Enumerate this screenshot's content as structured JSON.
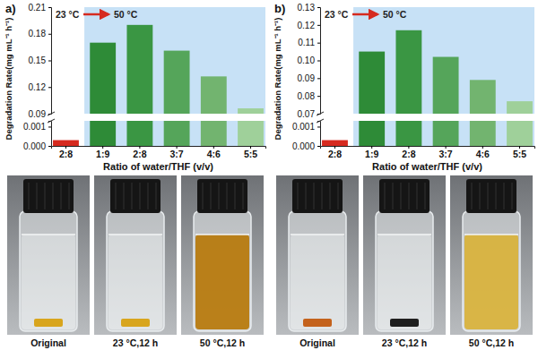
{
  "chart_data": [
    {
      "type": "bar",
      "panel_label": "a)",
      "ylabel": "Degradation Rate(mg mL⁻¹ h⁻¹)",
      "xlabel": "Ratio of water/THF (v/v)",
      "annotations": [
        "23 °C",
        "50 °C"
      ],
      "categories": [
        "2:8",
        "1:9",
        "2:8",
        "3:7",
        "4:6",
        "5:5"
      ],
      "values": [
        0.0003,
        0.17,
        0.19,
        0.161,
        0.132,
        0.096
      ],
      "colors": [
        "#d62a1f",
        "#2e8b37",
        "#3a9643",
        "#55a55a",
        "#72b46f",
        "#9fd09a"
      ],
      "y_segments": [
        {
          "ylim": [
            0,
            0.0013
          ],
          "yticks": [
            {
              "value": 0,
              "label": "0.000"
            },
            {
              "value": 0.001,
              "label": "0.001"
            }
          ]
        },
        {
          "ylim": [
            0.09,
            0.21
          ],
          "yticks": [
            0.09,
            0.12,
            0.15,
            0.18,
            0.21
          ]
        }
      ]
    },
    {
      "type": "bar",
      "panel_label": "b)",
      "ylabel": "Degradation Rate(mg mL⁻¹ h⁻¹)",
      "xlabel": "Ratio of water/THF (v/v)",
      "annotations": [
        "23 °C",
        "50 °C"
      ],
      "categories": [
        "2:8",
        "1:9",
        "2:8",
        "3:7",
        "4:6",
        "5:5"
      ],
      "values": [
        0.0003,
        0.105,
        0.117,
        0.102,
        0.089,
        0.077
      ],
      "colors": [
        "#d62a1f",
        "#2e8b37",
        "#3a9643",
        "#55a55a",
        "#72b46f",
        "#9fd09a"
      ],
      "y_segments": [
        {
          "ylim": [
            0,
            0.0013
          ],
          "yticks": [
            {
              "value": 0,
              "label": "0.000"
            },
            {
              "value": 0.001,
              "label": "0.001"
            }
          ]
        },
        {
          "ylim": [
            0.07,
            0.13
          ],
          "yticks": [
            0.07,
            0.08,
            0.09,
            {
              "value": 0.1,
              "label": "0.10"
            },
            0.11,
            0.12,
            0.13
          ]
        }
      ]
    }
  ],
  "photo_captions": [
    [
      "Original",
      "23 °C,12 h",
      "50 °C,12 h"
    ],
    [
      "Original",
      "23 °C,12 h",
      "50 °C,12 h"
    ]
  ]
}
